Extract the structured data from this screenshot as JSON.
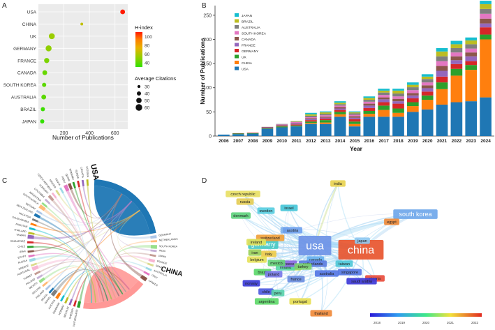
{
  "panels": {
    "a": "A",
    "b": "B",
    "c": "C",
    "d": "D"
  },
  "chart_data": [
    {
      "type": "scatter",
      "panel": "A",
      "title": "",
      "xlabel": "Number of Publications",
      "ylabel": "",
      "xlim": [
        0,
        700
      ],
      "xticks": [
        200,
        400,
        600
      ],
      "categories": [
        "USA",
        "CHINA",
        "UK",
        "GERMANY",
        "FRANCE",
        "CANADA",
        "SOUTH KOREA",
        "AUSTRALIA",
        "BRAZIL",
        "JAPAN"
      ],
      "publications": [
        660,
        340,
        105,
        80,
        65,
        50,
        45,
        42,
        35,
        30
      ],
      "h_index": [
        110,
        60,
        50,
        48,
        44,
        40,
        38,
        38,
        32,
        30
      ],
      "average_citations": [
        45,
        28,
        55,
        55,
        48,
        45,
        40,
        45,
        40,
        40
      ],
      "legend_color": {
        "title": "H-index",
        "ticks": [
          100,
          80,
          60,
          40
        ],
        "range": [
          30,
          110
        ],
        "colors": [
          "#33e000",
          "#9acd00",
          "#e8b300",
          "#ff7a00",
          "#ff1a00"
        ]
      },
      "legend_size": {
        "title": "Average Citations",
        "values": [
          30,
          40,
          50,
          60
        ]
      },
      "grid": true
    },
    {
      "type": "bar",
      "stacked": true,
      "panel": "B",
      "xlabel": "Year",
      "ylabel": "Number of Publications",
      "ylim": [
        0,
        270
      ],
      "yticks": [
        0,
        50,
        100,
        150,
        200,
        250
      ],
      "categories": [
        "2006",
        "2007",
        "2008",
        "2009",
        "2010",
        "2011",
        "2012",
        "2013",
        "2014",
        "2015",
        "2016",
        "2017",
        "2018",
        "2019",
        "2020",
        "2021",
        "2022",
        "2023",
        "2024"
      ],
      "series": [
        {
          "name": "USA",
          "color": "#1f77b4",
          "values": [
            3,
            4,
            5,
            15,
            18,
            20,
            25,
            25,
            40,
            20,
            40,
            40,
            40,
            50,
            55,
            65,
            70,
            72,
            80
          ]
        },
        {
          "name": "CHINA",
          "color": "#ff7f0e",
          "values": [
            0,
            0,
            0,
            0,
            0,
            0,
            2,
            3,
            5,
            5,
            6,
            14,
            8,
            12,
            20,
            32,
            55,
            65,
            120
          ]
        },
        {
          "name": "UK",
          "color": "#2ca02c",
          "values": [
            0,
            1,
            1,
            1,
            2,
            2,
            3,
            5,
            5,
            5,
            6,
            9,
            9,
            8,
            9,
            14,
            14,
            10,
            10
          ]
        },
        {
          "name": "GERMANY",
          "color": "#d62728",
          "values": [
            0,
            0,
            1,
            1,
            1,
            2,
            3,
            3,
            4,
            5,
            6,
            7,
            10,
            8,
            8,
            12,
            10,
            8,
            15
          ]
        },
        {
          "name": "FRANCE",
          "color": "#9467bd",
          "values": [
            0,
            0,
            0,
            1,
            1,
            2,
            2,
            2,
            3,
            3,
            5,
            6,
            5,
            6,
            7,
            12,
            8,
            10,
            8
          ]
        },
        {
          "name": "CANADA",
          "color": "#8c564b",
          "values": [
            0,
            1,
            0,
            1,
            1,
            1,
            2,
            2,
            3,
            3,
            4,
            4,
            5,
            5,
            6,
            10,
            8,
            8,
            10
          ]
        },
        {
          "name": "SOUTH KOREA",
          "color": "#e377c2",
          "values": [
            0,
            0,
            0,
            0,
            1,
            2,
            2,
            3,
            3,
            3,
            4,
            5,
            5,
            6,
            6,
            10,
            8,
            8,
            10
          ]
        },
        {
          "name": "AUSTRALIA",
          "color": "#7f7f7f",
          "values": [
            0,
            0,
            0,
            0,
            1,
            1,
            3,
            3,
            3,
            3,
            4,
            5,
            6,
            6,
            7,
            10,
            9,
            9,
            10
          ]
        },
        {
          "name": "BRAZIL",
          "color": "#bcbd22",
          "values": [
            0,
            0,
            0,
            0,
            0,
            1,
            3,
            3,
            3,
            2,
            4,
            4,
            6,
            5,
            5,
            10,
            8,
            8,
            10
          ]
        },
        {
          "name": "JAPAN",
          "color": "#17becf",
          "values": [
            0,
            0,
            0,
            0,
            0,
            0,
            3,
            2,
            3,
            2,
            3,
            4,
            4,
            5,
            5,
            7,
            7,
            6,
            7
          ]
        }
      ],
      "legend": [
        "JAPAN",
        "BRAZIL",
        "AUSTRALIA",
        "SOUTH KOREA",
        "CANADA",
        "FRANCE",
        "GERMANY",
        "UK",
        "CHINA",
        "USA"
      ]
    },
    {
      "type": "chord",
      "panel": "C",
      "major_labels": {
        "usa": "USA",
        "china": "CHINA"
      },
      "minor_labels": [
        "GERMANY",
        "NETHERLANDS",
        "SOUTH KOREA",
        "INDIA",
        "JAPAN",
        "FRANCE",
        "SPAIN",
        "AUSTRALIA",
        "ITALY",
        "CANADA",
        "SWITZERLAND",
        "SWEDEN",
        "BELGIUM",
        "NORWAY",
        "DENMARK",
        "AUSTRIA",
        "ISRAEL",
        "BRAZIL",
        "FINLAND",
        "IRELAND",
        "MEXICO",
        "POLAND",
        "TURKEY",
        "PORTUGAL",
        "GREECE",
        "RUSSIA",
        "EGYPT",
        "IRAN",
        "CHILE",
        "SINGAPORE",
        "TAIWAN",
        "THAILAND",
        "PAKISTAN",
        "SAUDI ARABIA",
        "MALAYSIA",
        "NEW ZEALAND",
        "VIETNAM",
        "SOUTH AFRICA",
        "ARGENTINA",
        "COLOMBIA",
        "HUNGARY",
        "CZECH REPUBLIC",
        "NIGERIA",
        "KENYA",
        "PERU",
        "QATAR",
        "ROMANIA",
        "SERBIA",
        "CROATIA",
        "ESTONIA"
      ]
    },
    {
      "type": "network",
      "panel": "D",
      "nodes": [
        {
          "label": "usa",
          "color": "#6e93e6"
        },
        {
          "label": "china",
          "color": "#e8552e"
        },
        {
          "label": "germany",
          "color": "#46c9c3"
        },
        {
          "label": "uk",
          "color": "#7fb2ec"
        },
        {
          "label": "canada",
          "color": "#67b0ee"
        },
        {
          "label": "japan",
          "color": "#8ec8f0"
        },
        {
          "label": "france",
          "color": "#6a8de0"
        },
        {
          "label": "australia",
          "color": "#5577e4"
        },
        {
          "label": "south korea",
          "color": "#6fa7ea"
        },
        {
          "label": "india",
          "color": "#e8d250"
        },
        {
          "label": "spain",
          "color": "#c6e25a"
        },
        {
          "label": "brazil",
          "color": "#5bd86a"
        },
        {
          "label": "italy",
          "color": "#eecc4a"
        },
        {
          "label": "switzerland",
          "color": "#f0a03a"
        },
        {
          "label": "netherlands",
          "color": "#5d7ee0"
        },
        {
          "label": "sweden",
          "color": "#58cde0"
        },
        {
          "label": "belgium",
          "color": "#e6e25a"
        },
        {
          "label": "denmark",
          "color": "#5fd27e"
        },
        {
          "label": "norway",
          "color": "#3c3cd8"
        },
        {
          "label": "israel",
          "color": "#47c6d8"
        },
        {
          "label": "finland",
          "color": "#5ad8a8"
        },
        {
          "label": "austria",
          "color": "#70a2ee"
        },
        {
          "label": "poland",
          "color": "#7a7ae8"
        },
        {
          "label": "ireland",
          "color": "#dfe15a"
        },
        {
          "label": "greece",
          "color": "#8a6ae0"
        },
        {
          "label": "turkey",
          "color": "#7ccf70"
        },
        {
          "label": "mexico",
          "color": "#66d37a"
        },
        {
          "label": "egypt",
          "color": "#ee8a3a"
        },
        {
          "label": "argentina",
          "color": "#5fd96a"
        },
        {
          "label": "portugal",
          "color": "#e7de55"
        },
        {
          "label": "russia",
          "color": "#e4cc55"
        },
        {
          "label": "singapore",
          "color": "#5577e4"
        },
        {
          "label": "taiwan",
          "color": "#4fc8d8"
        },
        {
          "label": "czech republic",
          "color": "#e8e064"
        },
        {
          "label": "nigeria",
          "color": "#e84c3c"
        },
        {
          "label": "saudi arabia",
          "color": "#3d3ad8"
        },
        {
          "label": "chile",
          "color": "#4d5be0"
        },
        {
          "label": "iran",
          "color": "#9ad05a"
        },
        {
          "label": "peru",
          "color": "#5ad2ac"
        },
        {
          "label": "thailand",
          "color": "#f08a3a"
        }
      ],
      "colorbar": {
        "ticks": [
          "2018",
          "2019",
          "2020",
          "2021",
          "2022"
        ]
      }
    }
  ]
}
